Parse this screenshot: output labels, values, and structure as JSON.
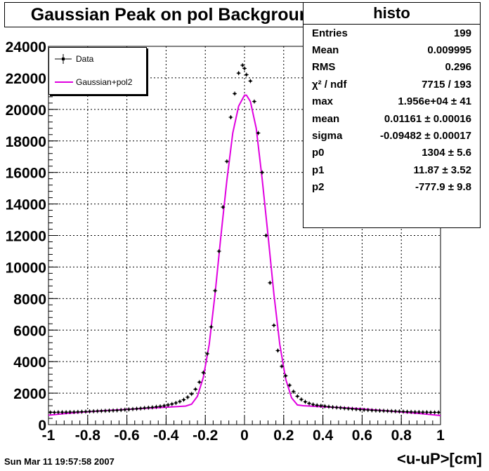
{
  "chart_data": {
    "type": "scatter",
    "title": "Gaussian Peak on pol Background",
    "xlabel": "<u-uP>[cm]",
    "ylabel": "",
    "xlim": [
      -1,
      1
    ],
    "ylim": [
      0,
      24000
    ],
    "x_ticks": [
      "-1",
      "-0.8",
      "-0.6",
      "-0.4",
      "-0.2",
      "0",
      "0.2",
      "0.4",
      "0.6",
      "0.8",
      "1"
    ],
    "y_ticks": [
      "0",
      "2000",
      "4000",
      "6000",
      "8000",
      "10000",
      "12000",
      "14000",
      "16000",
      "18000",
      "20000",
      "22000",
      "24000"
    ],
    "grid": true,
    "legend_position": "top-left",
    "legend": [
      "Data",
      "Gaussian+pol2"
    ],
    "series": [
      {
        "name": "Data",
        "kind": "points",
        "color": "#000000",
        "x": [
          -0.99,
          -0.97,
          -0.95,
          -0.93,
          -0.91,
          -0.89,
          -0.87,
          -0.85,
          -0.83,
          -0.81,
          -0.79,
          -0.77,
          -0.75,
          -0.73,
          -0.71,
          -0.69,
          -0.67,
          -0.65,
          -0.63,
          -0.61,
          -0.59,
          -0.57,
          -0.55,
          -0.53,
          -0.51,
          -0.49,
          -0.47,
          -0.45,
          -0.43,
          -0.41,
          -0.39,
          -0.37,
          -0.35,
          -0.33,
          -0.31,
          -0.29,
          -0.27,
          -0.25,
          -0.23,
          -0.21,
          -0.19,
          -0.17,
          -0.15,
          -0.13,
          -0.11,
          -0.09,
          -0.07,
          -0.05,
          -0.03,
          -0.01,
          0.0,
          0.01,
          0.03,
          0.05,
          0.07,
          0.09,
          0.11,
          0.13,
          0.15,
          0.17,
          0.19,
          0.21,
          0.23,
          0.25,
          0.27,
          0.29,
          0.31,
          0.33,
          0.35,
          0.37,
          0.39,
          0.41,
          0.43,
          0.45,
          0.47,
          0.49,
          0.51,
          0.53,
          0.55,
          0.57,
          0.59,
          0.61,
          0.63,
          0.65,
          0.67,
          0.69,
          0.71,
          0.73,
          0.75,
          0.77,
          0.79,
          0.81,
          0.83,
          0.85,
          0.87,
          0.89,
          0.91,
          0.93,
          0.95,
          0.97,
          0.99
        ],
        "y": [
          780,
          780,
          790,
          790,
          790,
          800,
          800,
          810,
          820,
          830,
          840,
          850,
          860,
          870,
          880,
          890,
          900,
          910,
          930,
          950,
          970,
          990,
          1010,
          1030,
          1060,
          1080,
          1100,
          1130,
          1160,
          1200,
          1250,
          1310,
          1380,
          1470,
          1580,
          1740,
          1950,
          2250,
          2700,
          3300,
          4500,
          6200,
          8500,
          11000,
          13800,
          16700,
          19500,
          21000,
          22300,
          22800,
          22600,
          22200,
          21800,
          20500,
          18500,
          16000,
          12000,
          9000,
          6300,
          4700,
          3700,
          3100,
          2500,
          2100,
          1800,
          1600,
          1450,
          1350,
          1280,
          1230,
          1200,
          1170,
          1140,
          1110,
          1090,
          1070,
          1040,
          1020,
          1000,
          980,
          960,
          940,
          930,
          910,
          900,
          890,
          880,
          870,
          860,
          850,
          840,
          830,
          820,
          810,
          800,
          800,
          790,
          790,
          780,
          780,
          780
        ]
      },
      {
        "name": "Gaussian+pol2",
        "kind": "line",
        "color": "#e000e0",
        "x": [
          -1.0,
          -0.9,
          -0.8,
          -0.7,
          -0.6,
          -0.5,
          -0.45,
          -0.4,
          -0.35,
          -0.3,
          -0.27,
          -0.24,
          -0.21,
          -0.18,
          -0.15,
          -0.12,
          -0.09,
          -0.06,
          -0.03,
          0.0,
          0.01,
          0.03,
          0.06,
          0.09,
          0.12,
          0.15,
          0.18,
          0.21,
          0.24,
          0.27,
          0.3,
          0.35,
          0.4,
          0.5,
          0.6,
          0.7,
          0.8,
          0.9,
          1.0
        ],
        "y": [
          600,
          720,
          820,
          900,
          970,
          1040,
          1070,
          1110,
          1140,
          1180,
          1300,
          1800,
          3000,
          5100,
          8300,
          12000,
          15500,
          18500,
          20200,
          20900,
          20900,
          20500,
          18800,
          15600,
          12000,
          8300,
          5100,
          2900,
          1700,
          1250,
          1200,
          1170,
          1130,
          1080,
          1000,
          900,
          800,
          700,
          580
        ]
      }
    ]
  },
  "stats": {
    "title": "histo",
    "rows": [
      {
        "label": "Entries",
        "value": "199"
      },
      {
        "label": "Mean",
        "value": "0.009995"
      },
      {
        "label": "RMS",
        "value": "0.296"
      },
      {
        "label": "χ² / ndf",
        "value": "7715 / 193"
      },
      {
        "label": "max",
        "value": "1.956e+04 ± 41"
      },
      {
        "label": "mean",
        "value": "0.01161 ± 0.00016"
      },
      {
        "label": "sigma",
        "value": "-0.09482 ± 0.00017"
      },
      {
        "label": "p0",
        "value": "1304 ± 5.6"
      },
      {
        "label": "p1",
        "value": "11.87 ± 3.52"
      },
      {
        "label": "p2",
        "value": "-777.9 ± 9.8"
      }
    ]
  },
  "footer": {
    "datestamp": "Sun Mar 11 19:57:58 2007"
  }
}
